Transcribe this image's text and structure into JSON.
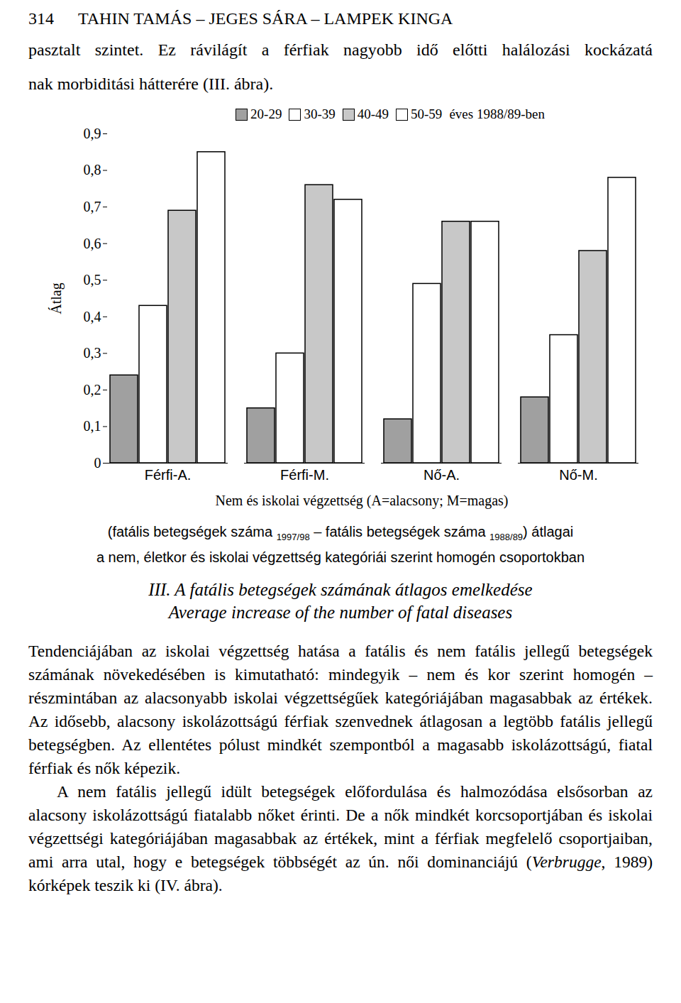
{
  "header": {
    "page_number": "314",
    "authors": "TAHIN TAMÁS – JEGES SÁRA – LAMPEK KINGA"
  },
  "intro_lines": [
    "pasztalt szintet. Ez rávilágít a férfiak nagyobb idő előtti halálozási kockázatá",
    "nak morbiditási hátterére (III. ábra)."
  ],
  "chart_data": {
    "type": "bar",
    "y_label": "Átlag",
    "x_label": "Nem és iskolai végzettség (A=alacsony; M=magas)",
    "categories": [
      "Férfi-A.",
      "Férfi-M.",
      "Nő-A.",
      "Nő-M."
    ],
    "series": [
      {
        "name": "20-29",
        "color": "#a0a0a0",
        "values": [
          0.24,
          0.15,
          0.12,
          0.18
        ]
      },
      {
        "name": "30-39",
        "color": "#ffffff",
        "values": [
          0.43,
          0.3,
          0.49,
          0.35
        ]
      },
      {
        "name": "40-49",
        "color": "#c8c8c8",
        "values": [
          0.69,
          0.76,
          0.66,
          0.58
        ]
      },
      {
        "name": "50-59",
        "color": "#ffffff",
        "values": [
          0.85,
          0.72,
          0.66,
          0.78
        ]
      }
    ],
    "legend_title": "éves 1988/89-ben",
    "legend": "top",
    "ylim": [
      0,
      0.9
    ],
    "yticks": [
      0,
      {
        "value": 0.1,
        "label": "0,1"
      },
      {
        "value": 0.2,
        "label": "0,2"
      },
      {
        "value": 0.3,
        "label": "0,3"
      },
      {
        "value": 0.4,
        "label": "0,4"
      },
      {
        "value": 0.5,
        "label": "0,5"
      },
      {
        "value": 0.6,
        "label": "0,6"
      },
      {
        "value": 0.7,
        "label": "0,7"
      },
      {
        "value": 0.8,
        "label": "0,8"
      },
      {
        "value": 0.9,
        "label": "0,9"
      }
    ],
    "grid": false
  },
  "caption": [
    [
      {
        "text": "(fatális betegségek száma "
      },
      {
        "sub": "1997/98"
      },
      {
        "text": " – fatális betegségek száma "
      },
      {
        "sub": "1988/89"
      },
      {
        "text": ") átlagai"
      }
    ],
    [
      {
        "text": "a nem, életkor és iskolai végzettség kategóriái szerint homogén csoportokban"
      }
    ]
  ],
  "figure_title": [
    "III. A fatális betegségek számának átlagos emelkedése",
    "Average increase of the number of fatal diseases"
  ],
  "paragraphs": [
    [
      {
        "text": "Tendenciájában az iskolai végzettség hatása a fatális és nem fatális jellegű betegségek számának növekedésében is kimutatható: mindegyik – nem és kor szerint homogén – részmintában az alacsonyabb iskolai végzettségűek kategóriájában magasabbak az értékek. Az idősebb, alacsony iskolázottságú férfiak szenvednek átlagosan a legtöbb fatális jellegű betegségben. Az ellentétes pólust mindkét szempontból a magasabb iskolázottságú, fiatal férfiak és nők képezik."
      }
    ],
    [
      {
        "text": "A nem fatális jellegű idült betegségek előfordulása és halmozódása elsősorban az alacsony iskolázottságú fiatalabb nőket érinti. De a nők mindkét korcsoportjában és iskolai végzettségi kategóriájában magasabbak az értékek, mint a férfiak megfelelő csoportjaiban, ami arra utal, hogy e betegségek többségét az ún. női dominanciájú ("
      },
      {
        "em": "Verbrugge"
      },
      {
        "text": ", 1989) kórképek teszik ki (IV. ábra)."
      }
    ]
  ]
}
